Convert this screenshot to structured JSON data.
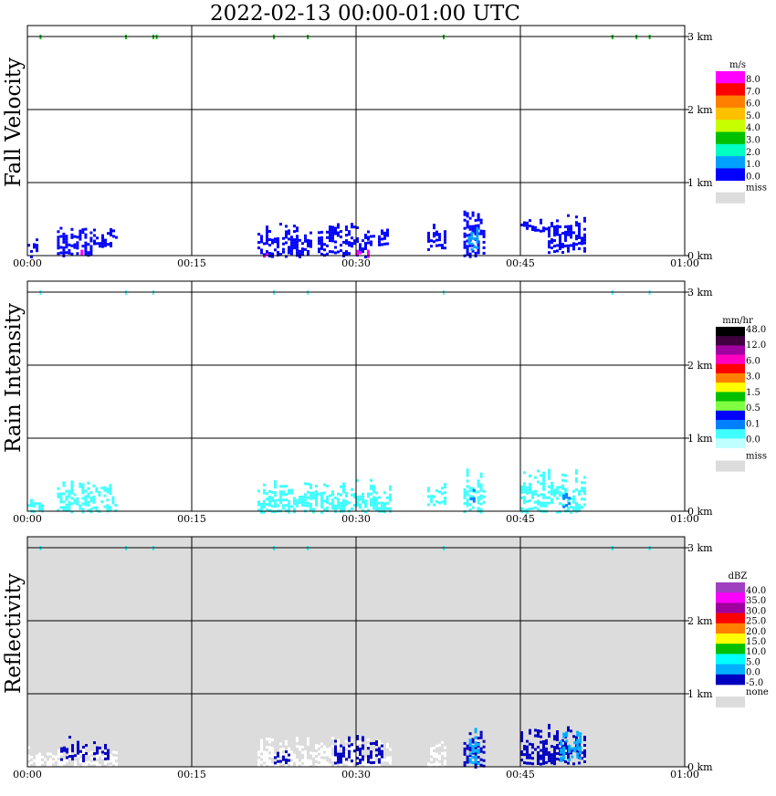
{
  "title": "2022-02-13   00:00-01:00 UTC",
  "time_ticks": [
    "00:00",
    "00:15",
    "00:30",
    "00:45",
    "01:00"
  ],
  "height_ticks": [
    "0 km",
    "1 km",
    "2 km",
    "3 km"
  ],
  "colors": {
    "frame": "#000000",
    "missing": "#dcdcdc",
    "panel_bg_reflectivity": "#dcdcdc"
  },
  "chart_data": [
    {
      "type": "heatmap",
      "ylabel": "Fall Velocity",
      "xlabel": "",
      "x_range_minutes": [
        0,
        60
      ],
      "y_range_km": [
        0,
        3.2
      ],
      "grid": true,
      "background": "white",
      "legend": {
        "unit": "m/s",
        "placement": "right",
        "labels": [
          "8.0",
          "7.0",
          "6.0",
          "5.0",
          "4.0",
          "3.0",
          "2.0",
          "1.0",
          "0.0"
        ],
        "colors": [
          "#ff00ff",
          "#ff0000",
          "#ff8000",
          "#ffc000",
          "#c8ff00",
          "#00c000",
          "#00ffc0",
          "#00a0ff",
          "#0000ff"
        ],
        "missing_label": "miss"
      },
      "blobs": [
        {
          "t0": 0.0,
          "t1": 1.0,
          "h0": 0.0,
          "h1": 0.25,
          "color": "#0000ff"
        },
        {
          "t0": 2.7,
          "t1": 5.8,
          "h0": 0.0,
          "h1": 0.45,
          "color": "#0000ff"
        },
        {
          "t0": 4.6,
          "t1": 5.0,
          "h0": 0.0,
          "h1": 0.1,
          "color": "#ff00ff"
        },
        {
          "t0": 6.0,
          "t1": 8.2,
          "h0": 0.12,
          "h1": 0.42,
          "color": "#0000ff"
        },
        {
          "t0": 21.0,
          "t1": 26.0,
          "h0": 0.0,
          "h1": 0.45,
          "color": "#0000ff"
        },
        {
          "t0": 21.5,
          "t1": 22.0,
          "h0": 0.0,
          "h1": 0.1,
          "color": "#ff00ff"
        },
        {
          "t0": 26.5,
          "t1": 31.0,
          "h0": 0.0,
          "h1": 0.45,
          "color": "#0000ff"
        },
        {
          "t0": 30.0,
          "t1": 31.0,
          "h0": 0.0,
          "h1": 0.1,
          "color": "#ff00ff"
        },
        {
          "t0": 31.0,
          "t1": 33.0,
          "h0": 0.15,
          "h1": 0.4,
          "color": "#0000ff"
        },
        {
          "t0": 36.5,
          "t1": 38.0,
          "h0": 0.1,
          "h1": 0.45,
          "color": "#0000ff"
        },
        {
          "t0": 39.8,
          "t1": 41.8,
          "h0": 0.0,
          "h1": 0.62,
          "color": "#0000ff"
        },
        {
          "t0": 40.2,
          "t1": 41.2,
          "h0": 0.05,
          "h1": 0.55,
          "color": "#00a0ff"
        },
        {
          "t0": 45.0,
          "t1": 47.5,
          "h0": 0.35,
          "h1": 0.55,
          "color": "#0000ff"
        },
        {
          "t0": 47.5,
          "t1": 51.0,
          "h0": 0.05,
          "h1": 0.62,
          "color": "#0000ff"
        }
      ],
      "specks": [
        {
          "t": 1.2,
          "h": 3.0,
          "color": "#00c000"
        },
        {
          "t": 9.0,
          "h": 3.0,
          "color": "#00c000"
        },
        {
          "t": 11.5,
          "h": 3.0,
          "color": "#00c000"
        },
        {
          "t": 11.8,
          "h": 3.0,
          "color": "#00c000"
        },
        {
          "t": 22.5,
          "h": 3.0,
          "color": "#00c000"
        },
        {
          "t": 25.6,
          "h": 3.0,
          "color": "#00c000"
        },
        {
          "t": 38.0,
          "h": 3.0,
          "color": "#00c000"
        },
        {
          "t": 53.4,
          "h": 3.0,
          "color": "#00c000"
        },
        {
          "t": 55.6,
          "h": 3.0,
          "color": "#00c000"
        },
        {
          "t": 56.8,
          "h": 3.0,
          "color": "#00c000"
        }
      ]
    },
    {
      "type": "heatmap",
      "ylabel": "Rain Intensity",
      "xlabel": "",
      "x_range_minutes": [
        0,
        60
      ],
      "y_range_km": [
        0,
        3.2
      ],
      "grid": true,
      "background": "white",
      "legend": {
        "unit": "mm/hr",
        "placement": "right",
        "labels": [
          "48.0",
          "12.0",
          "6.0",
          "3.0",
          "1.5",
          "0.5",
          "0.1",
          "0.0"
        ],
        "colors": [
          "#000000",
          "#400040",
          "#a000a0",
          "#ff00c0",
          "#ff0000",
          "#ff8000",
          "#ffff00",
          "#00c000",
          "#80ff40",
          "#0000ff",
          "#0080ff",
          "#40ffff",
          "#c0ffff"
        ],
        "missing_label": "miss"
      },
      "blobs": [
        {
          "t0": 0.0,
          "t1": 1.5,
          "h0": 0.0,
          "h1": 0.25,
          "color": "#40ffff"
        },
        {
          "t0": 2.7,
          "t1": 8.2,
          "h0": 0.0,
          "h1": 0.45,
          "color": "#40ffff"
        },
        {
          "t0": 21.0,
          "t1": 33.0,
          "h0": 0.0,
          "h1": 0.45,
          "color": "#40ffff"
        },
        {
          "t0": 36.5,
          "t1": 38.0,
          "h0": 0.1,
          "h1": 0.45,
          "color": "#40ffff"
        },
        {
          "t0": 39.8,
          "t1": 41.8,
          "h0": 0.0,
          "h1": 0.62,
          "color": "#40ffff"
        },
        {
          "t0": 40.4,
          "t1": 41.0,
          "h0": 0.15,
          "h1": 0.4,
          "color": "#0080ff"
        },
        {
          "t0": 45.0,
          "t1": 51.0,
          "h0": 0.0,
          "h1": 0.62,
          "color": "#40ffff"
        },
        {
          "t0": 48.6,
          "t1": 49.6,
          "h0": 0.05,
          "h1": 0.35,
          "color": "#0080ff"
        }
      ],
      "specks": [
        {
          "t": 1.2,
          "h": 3.0,
          "color": "#40ffff"
        },
        {
          "t": 9.0,
          "h": 3.0,
          "color": "#40ffff"
        },
        {
          "t": 11.5,
          "h": 3.0,
          "color": "#40ffff"
        },
        {
          "t": 22.5,
          "h": 3.0,
          "color": "#40ffff"
        },
        {
          "t": 25.6,
          "h": 3.0,
          "color": "#40ffff"
        },
        {
          "t": 38.0,
          "h": 3.0,
          "color": "#40ffff"
        },
        {
          "t": 53.4,
          "h": 3.0,
          "color": "#40ffff"
        },
        {
          "t": 56.8,
          "h": 3.0,
          "color": "#40ffff"
        }
      ]
    },
    {
      "type": "heatmap",
      "ylabel": "Reflectivity",
      "xlabel": "",
      "x_range_minutes": [
        0,
        60
      ],
      "y_range_km": [
        0,
        3.2
      ],
      "grid": true,
      "background": "gray",
      "legend": {
        "unit": "dBZ",
        "placement": "right",
        "labels": [
          "40.0",
          "35.0",
          "30.0",
          "25.0",
          "20.0",
          "15.0",
          "10.0",
          "5.0",
          "0.0",
          "-5.0"
        ],
        "colors": [
          "#a040c0",
          "#ff00ff",
          "#a000a0",
          "#ff0000",
          "#ff8000",
          "#ffff00",
          "#00c000",
          "#00ffff",
          "#00b0ff",
          "#0000c0"
        ],
        "missing_label": "none"
      },
      "blobs": [
        {
          "t0": 0.0,
          "t1": 8.2,
          "h0": 0.0,
          "h1": 0.3,
          "color": "#ffffff"
        },
        {
          "t0": 3.0,
          "t1": 5.5,
          "h0": 0.1,
          "h1": 0.45,
          "color": "#0000c0"
        },
        {
          "t0": 6.0,
          "t1": 7.5,
          "h0": 0.12,
          "h1": 0.4,
          "color": "#0000c0"
        },
        {
          "t0": 21.0,
          "t1": 33.0,
          "h0": 0.0,
          "h1": 0.45,
          "color": "#ffffff"
        },
        {
          "t0": 22.5,
          "t1": 24.0,
          "h0": 0.05,
          "h1": 0.25,
          "color": "#0000c0"
        },
        {
          "t0": 28.0,
          "t1": 32.5,
          "h0": 0.05,
          "h1": 0.45,
          "color": "#0000c0"
        },
        {
          "t0": 36.5,
          "t1": 38.0,
          "h0": 0.0,
          "h1": 0.45,
          "color": "#ffffff"
        },
        {
          "t0": 39.8,
          "t1": 41.8,
          "h0": 0.0,
          "h1": 0.62,
          "color": "#0000c0"
        },
        {
          "t0": 40.3,
          "t1": 41.3,
          "h0": 0.05,
          "h1": 0.55,
          "color": "#00b0ff"
        },
        {
          "t0": 45.0,
          "t1": 51.0,
          "h0": 0.05,
          "h1": 0.62,
          "color": "#0000c0"
        },
        {
          "t0": 48.6,
          "t1": 50.4,
          "h0": 0.1,
          "h1": 0.55,
          "color": "#00b0ff"
        }
      ],
      "specks": [
        {
          "t": 1.2,
          "h": 3.0,
          "color": "#00ffff"
        },
        {
          "t": 9.0,
          "h": 3.0,
          "color": "#00ffff"
        },
        {
          "t": 11.5,
          "h": 3.0,
          "color": "#00ffff"
        },
        {
          "t": 22.5,
          "h": 3.0,
          "color": "#00ffff"
        },
        {
          "t": 25.6,
          "h": 3.0,
          "color": "#00ffff"
        },
        {
          "t": 38.0,
          "h": 3.0,
          "color": "#00ffff"
        },
        {
          "t": 53.4,
          "h": 3.0,
          "color": "#00ffff"
        },
        {
          "t": 56.8,
          "h": 3.0,
          "color": "#00ffff"
        }
      ]
    }
  ]
}
